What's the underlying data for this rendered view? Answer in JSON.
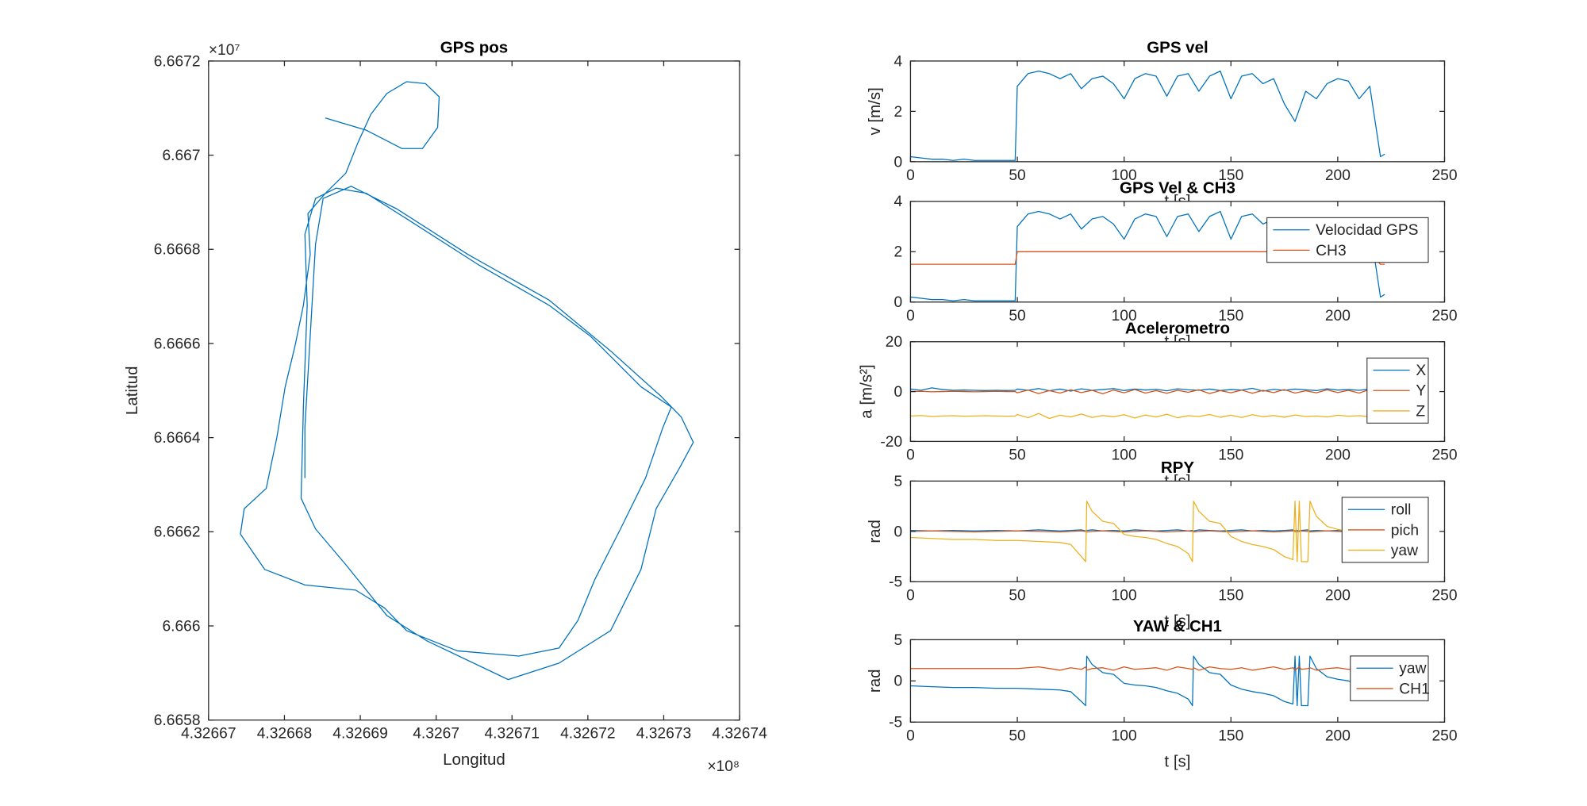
{
  "chart_data": [
    {
      "type": "line",
      "title": "GPS pos",
      "xlabel": "Longitud",
      "ylabel": "Latitud",
      "x_multiplier": "×10⁸",
      "y_multiplier": "×10⁷",
      "x": [
        4.3266854,
        4.3266908,
        4.3266955,
        4.3266982,
        4.3267002,
        4.3267004,
        4.3266986,
        4.3266961,
        4.3266935,
        4.3266914,
        4.3266897,
        4.3266881,
        4.3266854,
        4.3266831,
        4.3266834,
        4.3266825,
        4.3266814,
        4.3266801,
        4.326679,
        4.3266776,
        4.3266747,
        4.3266742,
        4.3266774,
        4.3266827,
        4.3266894,
        4.3266932,
        4.3266961,
        4.3267028,
        4.3267109,
        4.3267162,
        4.3267187,
        4.3267209,
        4.3267243,
        4.3267276,
        4.3267299,
        4.326731,
        4.326727,
        4.3267203,
        4.3267149,
        4.3267055,
        4.3266961,
        4.3266908,
        4.3266868,
        4.3266841,
        4.3266827,
        4.326683,
        4.3266825,
        4.3266822,
        4.3266841,
        4.3266881,
        4.3266935,
        4.3266988,
        4.3267095,
        4.3267162,
        4.326723,
        4.326727,
        4.326729,
        4.3267321,
        4.3267339,
        4.3267323,
        4.3267297,
        4.326723,
        4.3267149,
        4.3267042,
        4.3266948,
        4.3266888,
        4.3266851,
        4.3266841,
        4.3266834,
        4.3266827,
        4.3266827
      ],
      "series": [
        {
          "color": "#0072BD",
          "values": [
            6.667079,
            6.667053,
            6.667014,
            6.667014,
            6.667059,
            6.667124,
            6.667152,
            6.667156,
            6.667131,
            6.667087,
            6.667027,
            6.666962,
            6.666919,
            6.666876,
            6.666789,
            6.666681,
            6.666595,
            6.666508,
            6.6664,
            6.666292,
            6.666249,
            6.666195,
            6.66612,
            6.666087,
            6.666076,
            6.666038,
            6.66599,
            6.665947,
            6.665936,
            6.665953,
            6.666012,
            6.666098,
            6.666206,
            6.666314,
            6.666422,
            6.666465,
            6.666508,
            6.666616,
            6.666681,
            6.666768,
            6.666865,
            6.666919,
            6.66693,
            6.666908,
            6.666832,
            6.666681,
            6.666465,
            6.666271,
            6.666206,
            6.66613,
            6.666022,
            6.665968,
            6.665886,
            6.665921,
            6.66599,
            6.66612,
            6.666249,
            6.666336,
            6.66639,
            6.666444,
            6.666487,
            6.666584,
            6.666692,
            6.666789,
            6.666886,
            6.666934,
            6.666908,
            6.666811,
            6.666616,
            6.666422,
            6.666314
          ]
        }
      ],
      "xlim": [
        4.32667,
        4.32674
      ],
      "ylim": [
        6.6658,
        6.6672
      ],
      "xticks": [
        4.32667,
        4.32668,
        4.32669,
        4.3267,
        4.32671,
        4.32672,
        4.32673,
        4.32674
      ],
      "yticks": [
        6.6658,
        6.666,
        6.6662,
        6.6664,
        6.6666,
        6.6668,
        6.667,
        6.6672
      ]
    },
    {
      "type": "line",
      "title": "GPS vel",
      "xlabel": "t [s]",
      "ylabel": "v [m/s]",
      "x": [
        0,
        5,
        10,
        15,
        20,
        25,
        30,
        35,
        40,
        45,
        49,
        50,
        55,
        60,
        65,
        70,
        75,
        80,
        85,
        90,
        95,
        100,
        105,
        110,
        115,
        120,
        125,
        130,
        135,
        140,
        145,
        150,
        155,
        160,
        165,
        170,
        175,
        180,
        185,
        190,
        195,
        200,
        205,
        210,
        215,
        220,
        222
      ],
      "series": [
        {
          "color": "#0072BD",
          "values": [
            0.2,
            0.15,
            0.1,
            0.1,
            0.05,
            0.1,
            0.05,
            0.05,
            0.05,
            0.05,
            0.05,
            3.0,
            3.5,
            3.6,
            3.5,
            3.3,
            3.5,
            2.9,
            3.3,
            3.4,
            3.1,
            2.5,
            3.3,
            3.5,
            3.4,
            2.6,
            3.4,
            3.5,
            2.8,
            3.4,
            3.6,
            2.5,
            3.4,
            3.5,
            3.1,
            3.3,
            2.3,
            1.6,
            2.8,
            2.5,
            3.1,
            3.3,
            3.2,
            2.5,
            3.0,
            0.2,
            0.3
          ]
        }
      ],
      "xlim": [
        0,
        250
      ],
      "ylim": [
        0,
        4
      ],
      "xticks": [
        0,
        50,
        100,
        150,
        200,
        250
      ],
      "yticks": [
        0,
        2,
        4
      ]
    },
    {
      "type": "line",
      "title": "GPS Vel & CH3",
      "xlabel": "t [s]",
      "legend": "northeast",
      "x": [
        0,
        5,
        10,
        15,
        20,
        25,
        30,
        35,
        40,
        45,
        49,
        50,
        55,
        60,
        65,
        70,
        75,
        80,
        85,
        90,
        95,
        100,
        105,
        110,
        115,
        120,
        125,
        130,
        135,
        140,
        145,
        150,
        155,
        160,
        165,
        170,
        175,
        180,
        185,
        190,
        195,
        200,
        205,
        210,
        215,
        220,
        222
      ],
      "series": [
        {
          "name": "Velocidad GPS",
          "color": "#0072BD",
          "values": [
            0.2,
            0.15,
            0.1,
            0.1,
            0.05,
            0.1,
            0.05,
            0.05,
            0.05,
            0.05,
            0.05,
            3.0,
            3.5,
            3.6,
            3.5,
            3.3,
            3.5,
            2.9,
            3.3,
            3.4,
            3.1,
            2.5,
            3.3,
            3.5,
            3.4,
            2.6,
            3.4,
            3.5,
            2.8,
            3.4,
            3.6,
            2.5,
            3.4,
            3.5,
            3.1,
            3.3,
            2.3,
            1.6,
            2.8,
            2.5,
            3.1,
            3.3,
            3.2,
            2.5,
            3.0,
            0.2,
            0.3
          ]
        },
        {
          "name": "CH3",
          "color": "#D95319",
          "values": [
            1.5,
            1.5,
            1.5,
            1.5,
            1.5,
            1.5,
            1.5,
            1.5,
            1.5,
            1.5,
            1.5,
            2,
            2,
            2,
            2,
            2,
            2,
            2,
            2,
            2,
            2,
            2,
            2,
            2,
            2,
            2,
            2,
            2,
            2,
            2,
            2,
            2,
            2,
            2,
            2,
            2,
            2,
            2,
            2,
            2,
            2,
            2,
            2,
            2,
            2,
            1.5,
            1.5
          ]
        }
      ],
      "xlim": [
        0,
        250
      ],
      "ylim": [
        0,
        4
      ],
      "xticks": [
        0,
        50,
        100,
        150,
        200,
        250
      ],
      "yticks": [
        0,
        2,
        4
      ]
    },
    {
      "type": "line",
      "title": "Acelerometro",
      "xlabel": "t [s]",
      "ylabel": "a [m/s²]",
      "legend": "northeast",
      "x": [
        0,
        5,
        10,
        15,
        20,
        25,
        30,
        35,
        40,
        45,
        49,
        50,
        55,
        60,
        65,
        70,
        75,
        80,
        85,
        90,
        95,
        100,
        105,
        110,
        115,
        120,
        125,
        130,
        135,
        140,
        145,
        150,
        155,
        160,
        165,
        170,
        175,
        180,
        185,
        190,
        195,
        200,
        205,
        210,
        215,
        220,
        222
      ],
      "series": [
        {
          "name": "X",
          "color": "#0072BD",
          "values": [
            1,
            0.5,
            1.5,
            0.8,
            0.5,
            0.6,
            0.5,
            0.4,
            0.5,
            0.4,
            0.5,
            1,
            0.5,
            1.2,
            0.3,
            1,
            0.2,
            1.1,
            0.5,
            0.8,
            1.2,
            0.4,
            1,
            0.6,
            0.9,
            0.3,
            1.1,
            0.7,
            0.5,
            1,
            0.4,
            0.8,
            0.6,
            1.3,
            0.2,
            0.9,
            0.5,
            1,
            0.7,
            0.4,
            1.1,
            0.6,
            0.8,
            0.5,
            1,
            0.6,
            0.5
          ]
        },
        {
          "name": "Y",
          "color": "#D95319",
          "values": [
            0,
            0.1,
            -0.1,
            0,
            0.1,
            0,
            -0.1,
            0,
            0.1,
            0,
            0,
            -0.5,
            0.6,
            -0.8,
            0.4,
            -0.6,
            0.7,
            -0.4,
            0.5,
            -0.9,
            0.6,
            -0.5,
            0.8,
            -0.6,
            0.4,
            -0.7,
            0.5,
            -0.3,
            0.7,
            -0.8,
            0.4,
            -0.5,
            0.6,
            -0.7,
            0.5,
            -0.4,
            0.8,
            -0.6,
            0.3,
            -0.5,
            0.7,
            -0.4,
            0.5,
            -0.6,
            0.9,
            -0.3,
            0
          ]
        },
        {
          "name": "Z",
          "color": "#EDB120",
          "values": [
            -9.8,
            -9.6,
            -10,
            -9.8,
            -9.7,
            -9.9,
            -9.8,
            -9.7,
            -9.8,
            -9.9,
            -9.8,
            -9.2,
            -10.5,
            -8.8,
            -10.8,
            -9.5,
            -10.2,
            -9,
            -10.4,
            -9.6,
            -10.1,
            -9.3,
            -10.6,
            -9.4,
            -10.2,
            -9.1,
            -10.5,
            -9.7,
            -10,
            -9.2,
            -10.3,
            -9.5,
            -10.4,
            -9.3,
            -10.1,
            -9.6,
            -10.3,
            -9.4,
            -10,
            -9.8,
            -10.2,
            -9.5,
            -9.9,
            -9.7,
            -10.1,
            -9.8,
            -9.8
          ]
        }
      ],
      "xlim": [
        0,
        250
      ],
      "ylim": [
        -20,
        20
      ],
      "xticks": [
        0,
        50,
        100,
        150,
        200,
        250
      ],
      "yticks": [
        -20,
        0,
        20
      ]
    },
    {
      "type": "line",
      "title": "RPY",
      "xlabel": "t [s]",
      "ylabel": "rad",
      "legend": "northeast",
      "x": [
        0,
        10,
        20,
        30,
        40,
        50,
        60,
        70,
        75,
        80,
        82,
        82.5,
        85,
        90,
        95,
        100,
        105,
        110,
        115,
        120,
        125,
        130,
        132,
        132.5,
        135,
        140,
        145,
        150,
        155,
        160,
        165,
        170,
        175,
        179,
        180,
        181,
        182,
        183,
        186,
        187,
        190,
        195,
        200,
        205,
        210,
        215
      ],
      "series": [
        {
          "name": "roll",
          "color": "#0072BD",
          "values": [
            0.1,
            0.05,
            0.1,
            0.05,
            0.1,
            0.05,
            0.15,
            0.05,
            0.1,
            0.15,
            0.05,
            0.1,
            0.15,
            0.05,
            0.1,
            0.05,
            0.15,
            0.1,
            0.05,
            0.1,
            0.15,
            0.05,
            0.1,
            0.05,
            0.15,
            0.1,
            0.05,
            0.1,
            0.15,
            0.05,
            0.1,
            0.05,
            0.1,
            0.15,
            0.05,
            0.1,
            0.05,
            0.1,
            0.15,
            0.05,
            0.1,
            0.05,
            0.1,
            0.05,
            0.1,
            0.05
          ]
        },
        {
          "name": "pich",
          "color": "#D95319",
          "values": [
            0,
            0.05,
            0,
            -0.05,
            0,
            0.05,
            0,
            -0.05,
            0,
            0.05,
            0,
            -0.05,
            0,
            0.05,
            0,
            -0.05,
            0,
            0.05,
            0,
            -0.05,
            0,
            0.05,
            0,
            -0.05,
            0,
            0.05,
            0,
            -0.05,
            0,
            0.05,
            0,
            -0.05,
            0,
            0.05,
            0,
            -0.05,
            0,
            0.05,
            0,
            -0.05,
            0,
            0.05,
            0,
            -0.05,
            0,
            0
          ]
        },
        {
          "name": "yaw",
          "color": "#EDB120",
          "values": [
            -0.6,
            -0.7,
            -0.8,
            -0.8,
            -0.9,
            -0.9,
            -1.0,
            -1.1,
            -1.3,
            -2.5,
            -3.0,
            3.0,
            2.0,
            1.0,
            0.8,
            -0.3,
            -0.5,
            -0.6,
            -0.8,
            -1.2,
            -1.5,
            -2.2,
            -3.0,
            3.0,
            2.0,
            1.0,
            0.8,
            -0.5,
            -1.0,
            -1.3,
            -1.5,
            -1.8,
            -2.5,
            -2.8,
            3.0,
            -3.0,
            3.0,
            -3.0,
            -3.0,
            3.0,
            1.5,
            0.5,
            0.2,
            0.0,
            -0.5,
            -2.0
          ]
        }
      ],
      "xlim": [
        0,
        250
      ],
      "ylim": [
        -5,
        5
      ],
      "xticks": [
        0,
        50,
        100,
        150,
        200,
        250
      ],
      "yticks": [
        -5,
        0,
        5
      ]
    },
    {
      "type": "line",
      "title": "YAW & CH1",
      "xlabel": "t [s]",
      "ylabel": "rad",
      "legend": "northeast",
      "x": [
        0,
        10,
        20,
        30,
        40,
        50,
        60,
        70,
        75,
        80,
        82,
        82.5,
        85,
        90,
        95,
        100,
        105,
        110,
        115,
        120,
        125,
        130,
        132,
        132.5,
        135,
        140,
        145,
        150,
        155,
        160,
        165,
        170,
        175,
        179,
        180,
        181,
        182,
        183,
        186,
        187,
        190,
        195,
        200,
        205,
        210,
        215
      ],
      "series": [
        {
          "name": "yaw",
          "color": "#0072BD",
          "values": [
            -0.6,
            -0.7,
            -0.8,
            -0.8,
            -0.9,
            -0.9,
            -1.0,
            -1.1,
            -1.3,
            -2.5,
            -3.0,
            3.0,
            2.0,
            1.0,
            0.8,
            -0.3,
            -0.5,
            -0.6,
            -0.8,
            -1.2,
            -1.5,
            -2.2,
            -3.0,
            3.0,
            2.0,
            1.0,
            0.8,
            -0.5,
            -1.0,
            -1.3,
            -1.5,
            -1.8,
            -2.5,
            -2.8,
            3.0,
            -3.0,
            3.0,
            -3.0,
            -3.0,
            3.0,
            1.5,
            0.5,
            0.2,
            0.0,
            -0.5,
            -2.0
          ]
        },
        {
          "name": "CH1",
          "color": "#D95319",
          "values": [
            1.5,
            1.5,
            1.5,
            1.5,
            1.5,
            1.5,
            1.7,
            1.3,
            1.6,
            1.4,
            1.7,
            1.3,
            1.5,
            1.6,
            1.3,
            1.7,
            1.4,
            1.5,
            1.6,
            1.3,
            1.7,
            1.5,
            1.4,
            1.6,
            1.3,
            1.7,
            1.5,
            1.4,
            1.6,
            1.3,
            1.5,
            1.7,
            1.4,
            1.6,
            1.3,
            1.5,
            1.7,
            1.4,
            1.5,
            1.6,
            1.3,
            1.5,
            1.6,
            1.4,
            1.5,
            1.5
          ]
        }
      ],
      "xlim": [
        0,
        250
      ],
      "ylim": [
        -5,
        5
      ],
      "xticks": [
        0,
        50,
        100,
        150,
        200,
        250
      ],
      "yticks": [
        -5,
        0,
        5
      ]
    }
  ]
}
